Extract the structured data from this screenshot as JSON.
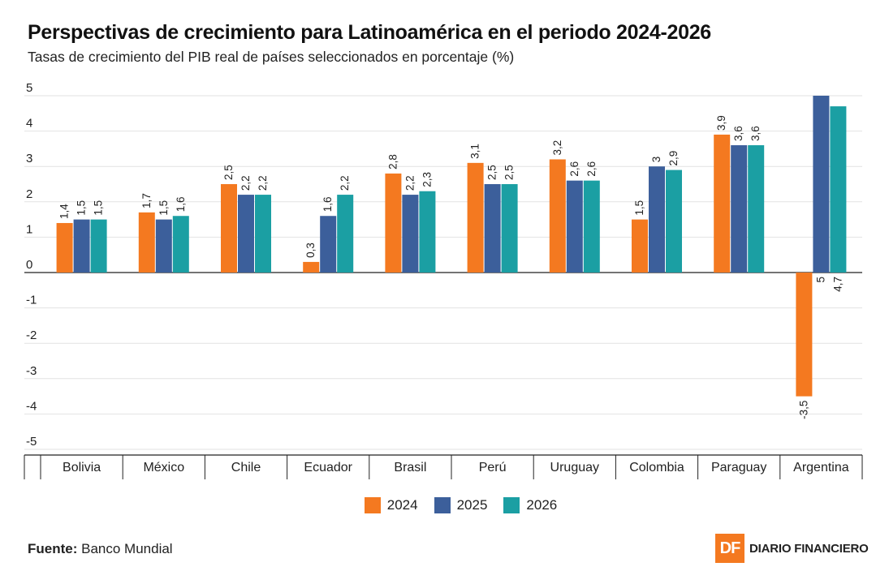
{
  "header": {
    "title": "Perspectivas de crecimiento para Latinoamérica en el periodo 2024-2026",
    "subtitle": "Tasas de crecimiento del PIB real de países seleccionados en porcentaje (%)"
  },
  "chart_data": {
    "type": "bar",
    "title": "Perspectivas de crecimiento para Latinoamérica en el periodo 2024-2026",
    "subtitle": "Tasas de crecimiento del PIB real de países seleccionados en porcentaje (%)",
    "categories": [
      "Bolivia",
      "México",
      "Chile",
      "Ecuador",
      "Brasil",
      "Perú",
      "Uruguay",
      "Colombia",
      "Paraguay",
      "Argentina"
    ],
    "series": [
      {
        "name": "2024",
        "color": "#f47920",
        "values": [
          1.4,
          1.7,
          2.5,
          0.3,
          2.8,
          3.1,
          3.2,
          1.5,
          3.9,
          -3.5
        ],
        "labels": [
          "1,4",
          "1,7",
          "2,5",
          "0,3",
          "2,8",
          "3,1",
          "3,2",
          "1,5",
          "3,9",
          "-3,5"
        ]
      },
      {
        "name": "2025",
        "color": "#3c5f9b",
        "values": [
          1.5,
          1.5,
          2.2,
          1.6,
          2.2,
          2.5,
          2.6,
          3.0,
          3.6,
          5.0
        ],
        "labels": [
          "1,5",
          "1,5",
          "2,2",
          "1,6",
          "2,2",
          "2,5",
          "2,6",
          "3",
          "3,6",
          "5"
        ]
      },
      {
        "name": "2026",
        "color": "#1b9fa3",
        "values": [
          1.5,
          1.6,
          2.2,
          2.2,
          2.3,
          2.5,
          2.6,
          2.9,
          3.6,
          4.7
        ],
        "labels": [
          "1,5",
          "1,6",
          "2,2",
          "2,2",
          "2,3",
          "2,5",
          "2,6",
          "2,9",
          "3,6",
          "4,7"
        ]
      }
    ],
    "y_ticks": [
      5,
      4,
      3,
      2,
      1,
      0,
      -1,
      -2,
      -3,
      -4,
      -5
    ],
    "y_tick_labels": [
      "5",
      "4",
      "3",
      "2",
      "1",
      "0",
      "-1",
      "-2",
      "-3",
      "-4",
      "-5"
    ],
    "ylim": [
      -5.5,
      5
    ],
    "xlabel": "",
    "ylabel": "",
    "grid": true,
    "legend": "bottom-center"
  },
  "legend": {
    "items": [
      {
        "label": "2024",
        "color": "#f47920"
      },
      {
        "label": "2025",
        "color": "#3c5f9b"
      },
      {
        "label": "2026",
        "color": "#1b9fa3"
      }
    ]
  },
  "footer": {
    "source_label": "Fuente:",
    "source_value": "Banco Mundial",
    "brand_mark": "DF",
    "brand_name": "DIARIO FINANCIERO"
  }
}
